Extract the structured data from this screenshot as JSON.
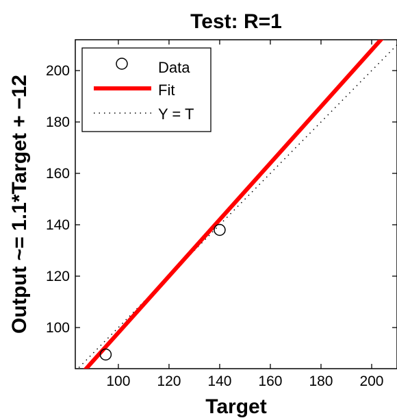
{
  "chart_data": {
    "type": "scatter",
    "title": "Test: R=1",
    "xlabel": "Target",
    "ylabel": "Output ~= 1.1*Target + −12",
    "xlim": [
      83,
      210
    ],
    "ylim": [
      84,
      212
    ],
    "xticks": [
      100,
      120,
      140,
      160,
      180,
      200
    ],
    "yticks": [
      100,
      120,
      140,
      160,
      180,
      200
    ],
    "grid": false,
    "legend_position": "top-left",
    "legend": {
      "data": "Data",
      "fit": "Fit",
      "identity": "Y = T"
    },
    "series": [
      {
        "name": "Data",
        "kind": "markers",
        "marker": "open-circle",
        "color": "#000000",
        "points": [
          {
            "x": 95,
            "y": 89.5
          },
          {
            "x": 140,
            "y": 138
          }
        ]
      },
      {
        "name": "Fit",
        "kind": "line",
        "color": "#ff0000",
        "slope": 1.1,
        "intercept": -12
      },
      {
        "name": "Y = T",
        "kind": "dotted-line",
        "color": "#000000",
        "slope": 1,
        "intercept": 0
      }
    ]
  }
}
